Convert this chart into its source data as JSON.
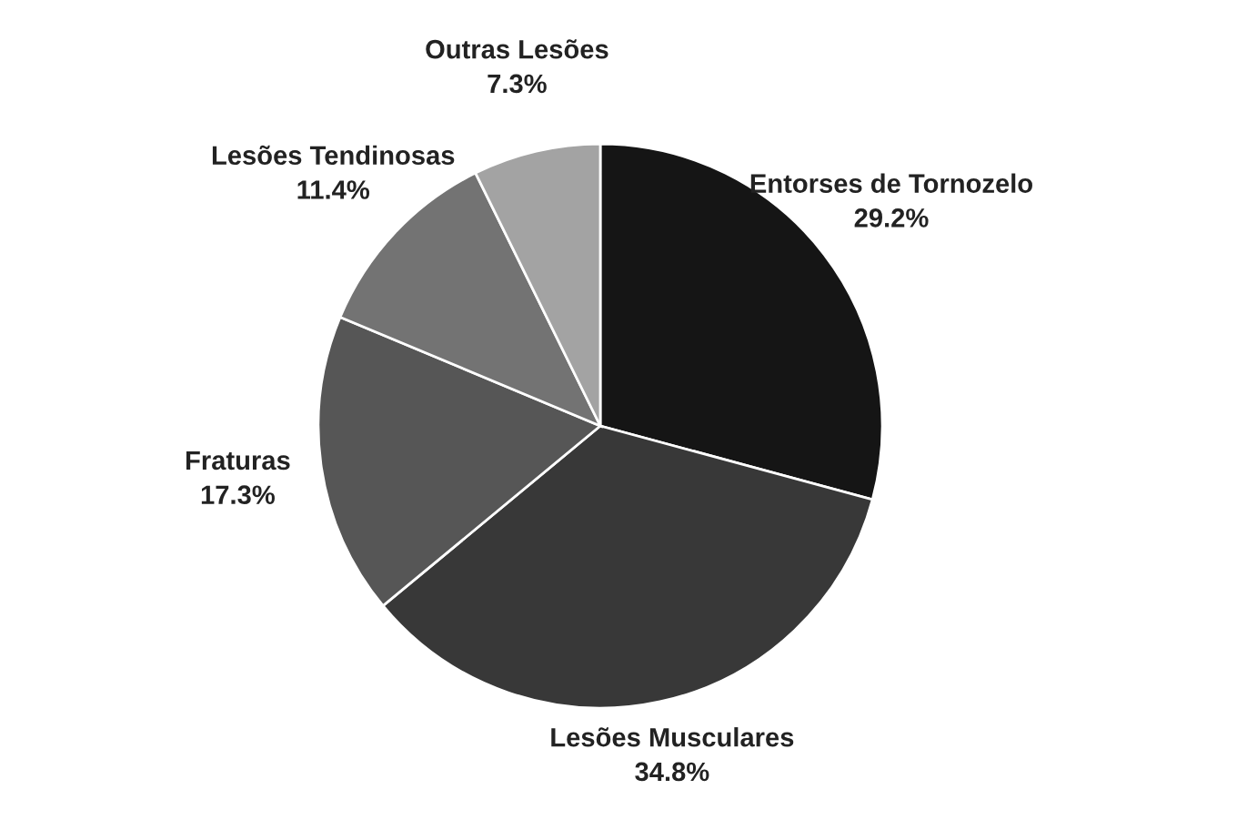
{
  "chart_data": {
    "type": "pie",
    "categories": [
      "Entorses de Tornozelo",
      "Lesões Musculares",
      "Fraturas",
      "Lesões Tendinosas",
      "Outras Lesões"
    ],
    "values": [
      29.2,
      34.8,
      17.3,
      11.4,
      7.3
    ],
    "value_labels": [
      "29.2%",
      "34.8%",
      "17.3%",
      "11.4%",
      "7.3%"
    ],
    "colors": [
      "#151515",
      "#383838",
      "#565656",
      "#737373",
      "#a3a3a3"
    ],
    "legend": false
  }
}
